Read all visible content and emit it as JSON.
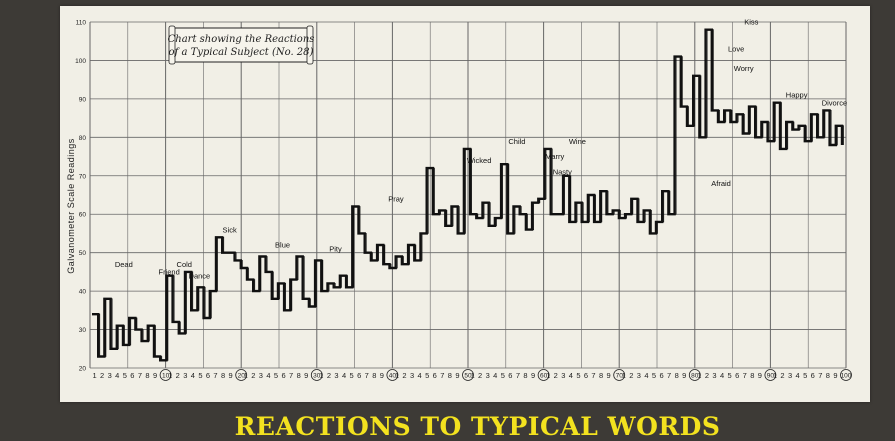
{
  "caption": "REACTIONS TO TYPICAL WORDS",
  "colors": {
    "background": "#3d3a36",
    "paper": "#f1efe6",
    "grid": "#666666",
    "ink": "#111111",
    "caption": "#f3e21f"
  },
  "chart_data": {
    "type": "line",
    "title": "Chart showing the Reactions of a Typical Subject (No. 28)",
    "title_lines": [
      "Chart showing the Reactions",
      "of a Typical Subject (No. 28)"
    ],
    "ylabel": "Galvanometer Scale Readings",
    "xlabel": "",
    "ylim": [
      20,
      110
    ],
    "yticks": [
      20,
      30,
      40,
      50,
      60,
      70,
      80,
      90,
      100,
      110
    ],
    "x_range": [
      1,
      100
    ],
    "x_major_ticks": [
      10,
      20,
      30,
      40,
      50,
      60,
      70,
      80,
      90,
      100
    ],
    "grid": true,
    "series": [
      {
        "values": [
          34,
          23,
          38,
          25,
          31,
          26,
          33,
          30,
          27,
          31,
          23,
          22,
          44,
          32,
          29,
          45,
          35,
          41,
          33,
          40,
          54,
          50,
          50,
          48,
          46,
          43,
          40,
          49,
          45,
          38,
          42,
          35,
          43,
          49,
          38,
          36,
          48,
          40,
          42,
          41,
          44,
          41,
          62,
          55,
          50,
          48,
          52,
          47,
          46,
          49,
          47,
          52,
          48,
          55,
          72,
          60,
          61,
          57,
          62,
          55,
          77,
          60,
          59,
          63,
          57,
          59,
          73,
          55,
          62,
          60,
          56,
          63,
          64,
          77,
          60,
          60,
          70,
          58,
          63,
          58,
          65,
          58,
          66,
          60,
          61,
          59,
          60,
          64,
          58,
          61,
          55,
          58,
          66,
          60,
          101,
          88,
          83,
          96,
          80,
          108,
          87,
          84,
          87,
          84,
          86,
          81,
          88,
          80,
          84,
          79,
          89,
          77,
          84,
          82,
          83,
          79,
          86,
          80,
          87,
          78,
          83,
          78
        ]
      }
    ],
    "annotations": [
      {
        "x": 5,
        "y": 45,
        "text": "Dead"
      },
      {
        "x": 11,
        "y": 43,
        "text": "Friend"
      },
      {
        "x": 13,
        "y": 45,
        "text": "Cold"
      },
      {
        "x": 15,
        "y": 42,
        "text": "Dance"
      },
      {
        "x": 19,
        "y": 54,
        "text": "Sick"
      },
      {
        "x": 26,
        "y": 50,
        "text": "Blue"
      },
      {
        "x": 33,
        "y": 49,
        "text": "Pity"
      },
      {
        "x": 41,
        "y": 62,
        "text": "Pray"
      },
      {
        "x": 52,
        "y": 72,
        "text": "Wicked"
      },
      {
        "x": 57,
        "y": 77,
        "text": "Child"
      },
      {
        "x": 62,
        "y": 73,
        "text": "Marry"
      },
      {
        "x": 63,
        "y": 69,
        "text": "Nasty"
      },
      {
        "x": 65,
        "y": 77,
        "text": "Wine"
      },
      {
        "x": 84,
        "y": 66,
        "text": "Afraid"
      },
      {
        "x": 86,
        "y": 101,
        "text": "Love"
      },
      {
        "x": 87,
        "y": 96,
        "text": "Worry"
      },
      {
        "x": 88,
        "y": 108,
        "text": "Kiss"
      },
      {
        "x": 94,
        "y": 89,
        "text": "Happy"
      },
      {
        "x": 99,
        "y": 87,
        "text": "Divorce"
      }
    ]
  }
}
